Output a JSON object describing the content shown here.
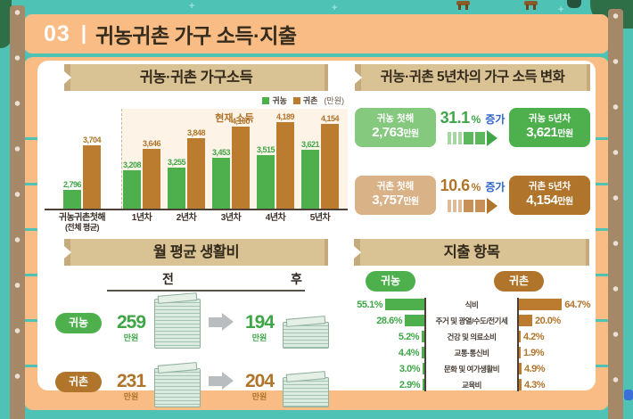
{
  "colors": {
    "background_teal": "#4fc2b6",
    "frame_orange": "#f8bc84",
    "post_brown": "#a58867",
    "ribbon_tan": "#d9c394",
    "green_main": "#4db04d",
    "green_light": "#85c97f",
    "brown_main": "#b0742a",
    "brown_bar": "#bc7c2f",
    "brown_light": "#dab287",
    "blue_accent": "#2f64c9",
    "chart_bg_peach": "#fdf3e7"
  },
  "header": {
    "number": "03",
    "divider": "|",
    "title": "귀농귀촌 가구 소득·지출"
  },
  "income_panel": {
    "title": "귀농·귀촌 가구소득",
    "legend": [
      {
        "label": "귀농",
        "theme": "green"
      },
      {
        "label": "귀촌",
        "theme": "brown"
      }
    ],
    "legend_unit": "(만원)",
    "annotation": "현재 소득"
  },
  "change_panel": {
    "title": "귀농·귀촌 5년차의 가구 소득 변화",
    "rows": [
      {
        "theme": "g",
        "from_label": "귀농 첫해",
        "from_value": "2,763",
        "unit": "만원",
        "pct": "31.1",
        "pct_sign": "%",
        "change_label": "증가",
        "to_label": "귀농 5년차",
        "to_value": "3,621"
      },
      {
        "theme": "b",
        "from_label": "귀촌 첫해",
        "from_value": "3,757",
        "unit": "만원",
        "pct": "10.6",
        "pct_sign": "%",
        "change_label": "증가",
        "to_label": "귀촌 5년차",
        "to_value": "4,154"
      }
    ]
  },
  "living_panel": {
    "title": "월 평균 생활비",
    "before_label": "전",
    "after_label": "후",
    "unit": "만원",
    "rows": [
      {
        "theme": "g",
        "group": "귀농",
        "before": 259,
        "after": 194
      },
      {
        "theme": "b",
        "group": "귀촌",
        "before": 231,
        "after": 204
      }
    ]
  },
  "expense_panel": {
    "title": "지출 항목",
    "left_group": "귀농",
    "right_group": "귀촌"
  },
  "chart_data": [
    {
      "type": "bar",
      "title": "귀농·귀촌 가구소득",
      "ylabel": "만원",
      "categories": [
        "귀농귀촌첫해\n(전체 평균)",
        "1년차",
        "2년차",
        "3년차",
        "4년차",
        "5년차"
      ],
      "series": [
        {
          "name": "귀농",
          "values": [
            2796,
            3208,
            3255,
            3453,
            3515,
            3621
          ]
        },
        {
          "name": "귀촌",
          "values": [
            3704,
            3646,
            3848,
            4100,
            4189,
            4154
          ]
        }
      ],
      "annotation": "현재 소득 (1년차~5년차 구간)",
      "ylim": [
        2400,
        4400
      ],
      "legend_position": "top-right",
      "grid": false
    },
    {
      "type": "bar",
      "title": "지출 항목",
      "orientation": "tornado",
      "unit": "%",
      "categories": [
        "식비",
        "주거 및 광열/수도/전기세",
        "건강 및 의료소비",
        "교통·통신비",
        "문화 및 여가생활비",
        "교육비"
      ],
      "series": [
        {
          "name": "귀농",
          "values": [
            55.1,
            28.6,
            5.2,
            4.4,
            3.0,
            2.9
          ]
        },
        {
          "name": "귀촌",
          "values": [
            64.7,
            20.0,
            4.2,
            1.9,
            4.9,
            4.3
          ]
        }
      ]
    }
  ]
}
